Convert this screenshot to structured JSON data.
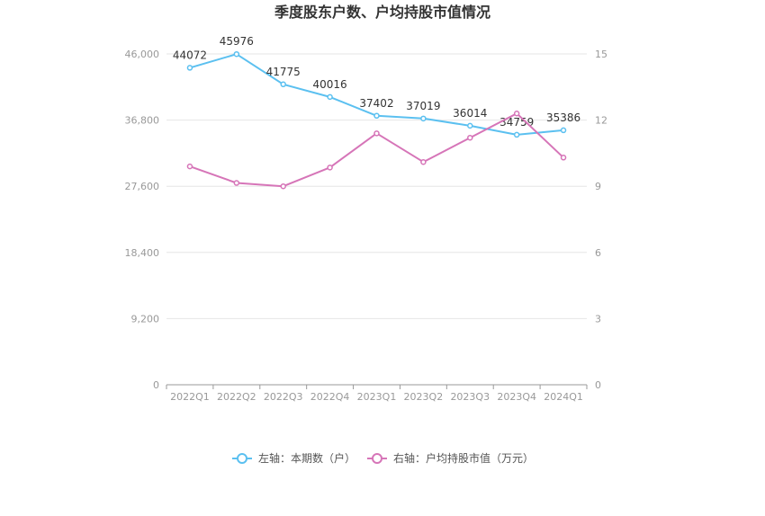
{
  "chart_data": {
    "type": "line",
    "title": "季度股东户数、户均持股市值情况",
    "categories": [
      "2022Q1",
      "2022Q2",
      "2022Q3",
      "2022Q4",
      "2023Q1",
      "2023Q2",
      "2023Q3",
      "2023Q4",
      "2024Q1"
    ],
    "series": [
      {
        "name": "左轴：本期数（户）",
        "axis": "left",
        "color": "#5bc0f0",
        "values": [
          44072,
          45976,
          41775,
          40016,
          37402,
          37019,
          36014,
          34759,
          35386
        ]
      },
      {
        "name": "右轴：户均持股市值（万元）",
        "axis": "right",
        "color": "#d675b8",
        "values": [
          9.9,
          9.15,
          9.0,
          9.85,
          11.4,
          10.1,
          11.2,
          12.3,
          10.3
        ]
      }
    ],
    "y_left": {
      "lim": [
        0,
        46000
      ],
      "ticks": [
        "0",
        "9,200",
        "18,400",
        "27,600",
        "36,800",
        "46,000"
      ]
    },
    "y_right": {
      "lim": [
        0,
        15
      ],
      "ticks": [
        "0",
        "3",
        "6",
        "9",
        "12",
        "15"
      ]
    },
    "grid": true,
    "legend_position": "bottom"
  }
}
